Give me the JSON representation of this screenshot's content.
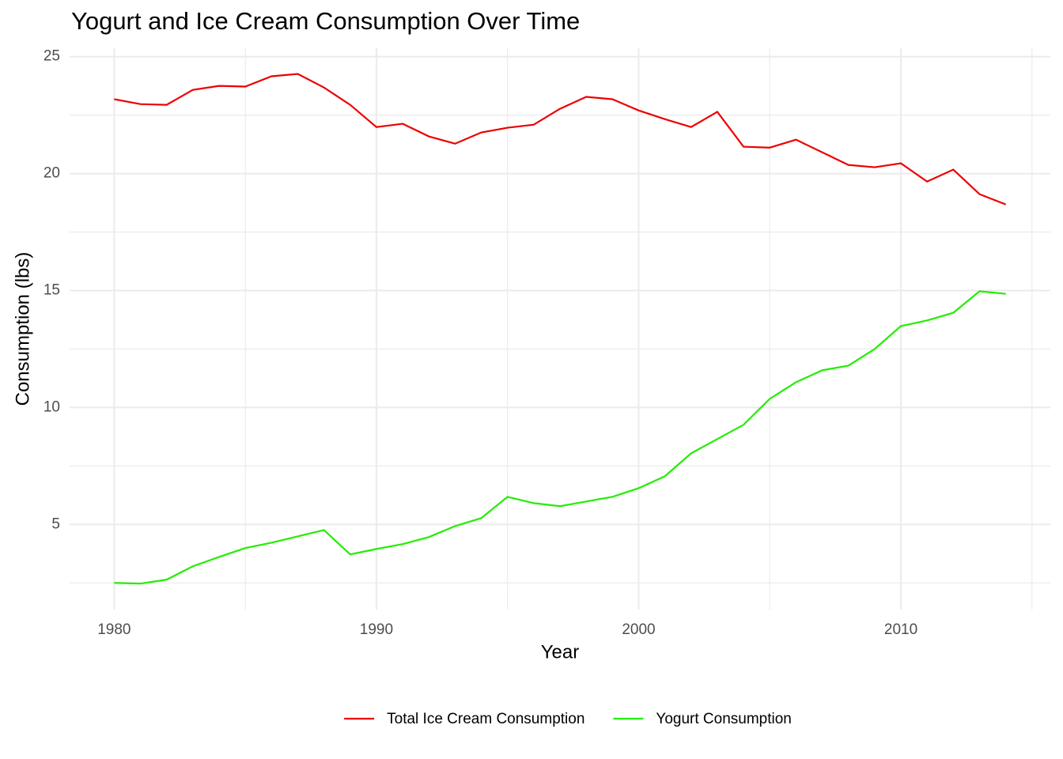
{
  "chart_data": {
    "type": "line",
    "title": "Yogurt and Ice Cream Consumption Over Time",
    "x_label": "Year",
    "y_label": "Consumption (lbs)",
    "x": [
      1980,
      1981,
      1982,
      1983,
      1984,
      1985,
      1986,
      1987,
      1988,
      1989,
      1990,
      1991,
      1992,
      1993,
      1994,
      1995,
      1996,
      1997,
      1998,
      1999,
      2000,
      2001,
      2002,
      2003,
      2004,
      2005,
      2006,
      2007,
      2008,
      2009,
      2010,
      2011,
      2012,
      2013,
      2014
    ],
    "series": [
      {
        "name": "Total Ice Cream Consumption",
        "color": "#ee0000",
        "values": [
          23.18,
          22.97,
          22.94,
          23.58,
          23.75,
          23.72,
          24.16,
          24.26,
          23.68,
          22.94,
          21.99,
          22.13,
          21.59,
          21.28,
          21.76,
          21.96,
          22.09,
          22.77,
          23.28,
          23.18,
          22.7,
          22.33,
          21.99,
          22.64,
          21.15,
          21.11,
          21.45,
          20.91,
          20.37,
          20.27,
          20.44,
          19.66,
          20.17,
          19.12,
          18.68
        ]
      },
      {
        "name": "Yogurt Consumption",
        "color": "#22ee00",
        "values": [
          2.5,
          2.47,
          2.64,
          3.21,
          3.61,
          3.99,
          4.22,
          4.49,
          4.76,
          3.72,
          3.95,
          4.16,
          4.46,
          4.93,
          5.27,
          6.18,
          5.91,
          5.78,
          5.98,
          6.18,
          6.55,
          7.06,
          8.04,
          8.65,
          9.26,
          10.37,
          11.08,
          11.59,
          11.79,
          12.5,
          13.48,
          13.72,
          14.05,
          14.97,
          14.86
        ]
      }
    ],
    "xlim": [
      1978.3,
      2015.7
    ],
    "xticks": [
      1980,
      1990,
      2000,
      2010
    ],
    "ylim": [
      1.36,
      25.36
    ],
    "yticks": [
      5,
      10,
      15,
      20,
      25
    ],
    "xminor": [
      1985,
      1995,
      2005,
      2015
    ],
    "yminor": [
      2.5,
      7.5,
      12.5,
      17.5,
      22.5
    ],
    "grid": true,
    "legend": "bottom"
  }
}
